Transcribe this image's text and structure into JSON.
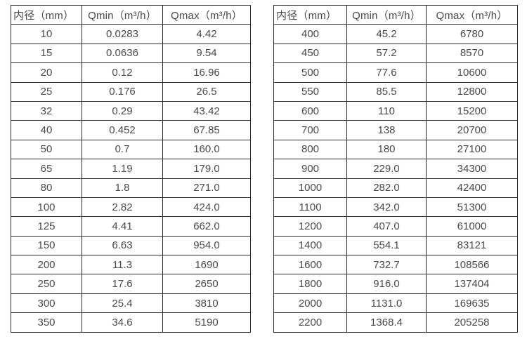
{
  "page": {
    "background_color": "#ffffff",
    "text_color": "#4a4a4a",
    "border_color": "#2b2b2b"
  },
  "tables": [
    {
      "id": "flow-table-small-diameter",
      "headers": [
        "内径（mm）",
        "Qmin（m³/h）",
        "Qmax（m³/h）"
      ],
      "rows": [
        [
          "10",
          "0.0283",
          "4.42"
        ],
        [
          "15",
          "0.0636",
          "9.54"
        ],
        [
          "20",
          "0.12",
          "16.96"
        ],
        [
          "25",
          "0.176",
          "26.5"
        ],
        [
          "32",
          "0.29",
          "43.42"
        ],
        [
          "40",
          "0.452",
          "67.85"
        ],
        [
          "50",
          "0.7",
          "160.0"
        ],
        [
          "65",
          "1.19",
          "179.0"
        ],
        [
          "80",
          "1.8",
          "271.0"
        ],
        [
          "100",
          "2.82",
          "424.0"
        ],
        [
          "125",
          "4.41",
          "662.0"
        ],
        [
          "150",
          "6.63",
          "954.0"
        ],
        [
          "200",
          "11.3",
          "1690"
        ],
        [
          "250",
          "17.6",
          "2650"
        ],
        [
          "300",
          "25.4",
          "3810"
        ],
        [
          "350",
          "34.6",
          "5190"
        ]
      ]
    },
    {
      "id": "flow-table-large-diameter",
      "headers": [
        "内径（mm）",
        "Qmin（m³/h）",
        "Qmax（m³/h）"
      ],
      "rows": [
        [
          "400",
          "45.2",
          "6780"
        ],
        [
          "450",
          "57.2",
          "8570"
        ],
        [
          "500",
          "77.6",
          "10600"
        ],
        [
          "550",
          "85.5",
          "12800"
        ],
        [
          "600",
          "110",
          "15200"
        ],
        [
          "700",
          "138",
          "20700"
        ],
        [
          "800",
          "180",
          "27100"
        ],
        [
          "900",
          "229.0",
          "34300"
        ],
        [
          "1000",
          "282.0",
          "42400"
        ],
        [
          "1100",
          "342.0",
          "51300"
        ],
        [
          "1200",
          "407.0",
          "61000"
        ],
        [
          "1400",
          "554.1",
          "83121"
        ],
        [
          "1600",
          "732.7",
          "108566"
        ],
        [
          "1800",
          "916.0",
          "137404"
        ],
        [
          "2000",
          "1131.0",
          "169635"
        ],
        [
          "2200",
          "1368.4",
          "205258"
        ]
      ]
    }
  ]
}
